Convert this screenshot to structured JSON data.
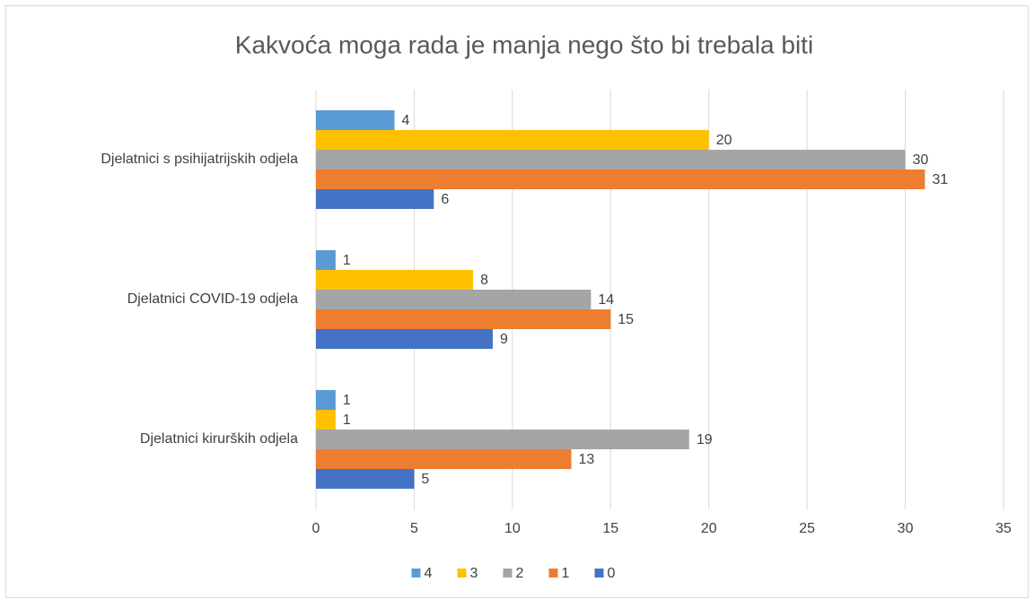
{
  "chart_data": {
    "type": "hbar",
    "title": "Kakvoća moga rada je manja nego što bi trebala biti",
    "categories": [
      "Djelatnici s psihijatrijskih odjela",
      "Djelatnici COVID-19 odjela",
      "Djelatnici kirurških odjela"
    ],
    "series": [
      {
        "name": "4",
        "color": "#5b9bd5",
        "values": [
          4,
          1,
          1
        ]
      },
      {
        "name": "3",
        "color": "#ffc000",
        "values": [
          20,
          8,
          1
        ]
      },
      {
        "name": "2",
        "color": "#a5a5a5",
        "values": [
          30,
          14,
          19
        ]
      },
      {
        "name": "1",
        "color": "#ed7d31",
        "values": [
          31,
          15,
          13
        ]
      },
      {
        "name": "0",
        "color": "#4472c4",
        "values": [
          6,
          9,
          5
        ]
      }
    ],
    "xlim": [
      0,
      35
    ],
    "xticks": [
      0,
      5,
      10,
      15,
      20,
      25,
      30,
      35
    ],
    "grid": true,
    "legend": "bottom"
  }
}
